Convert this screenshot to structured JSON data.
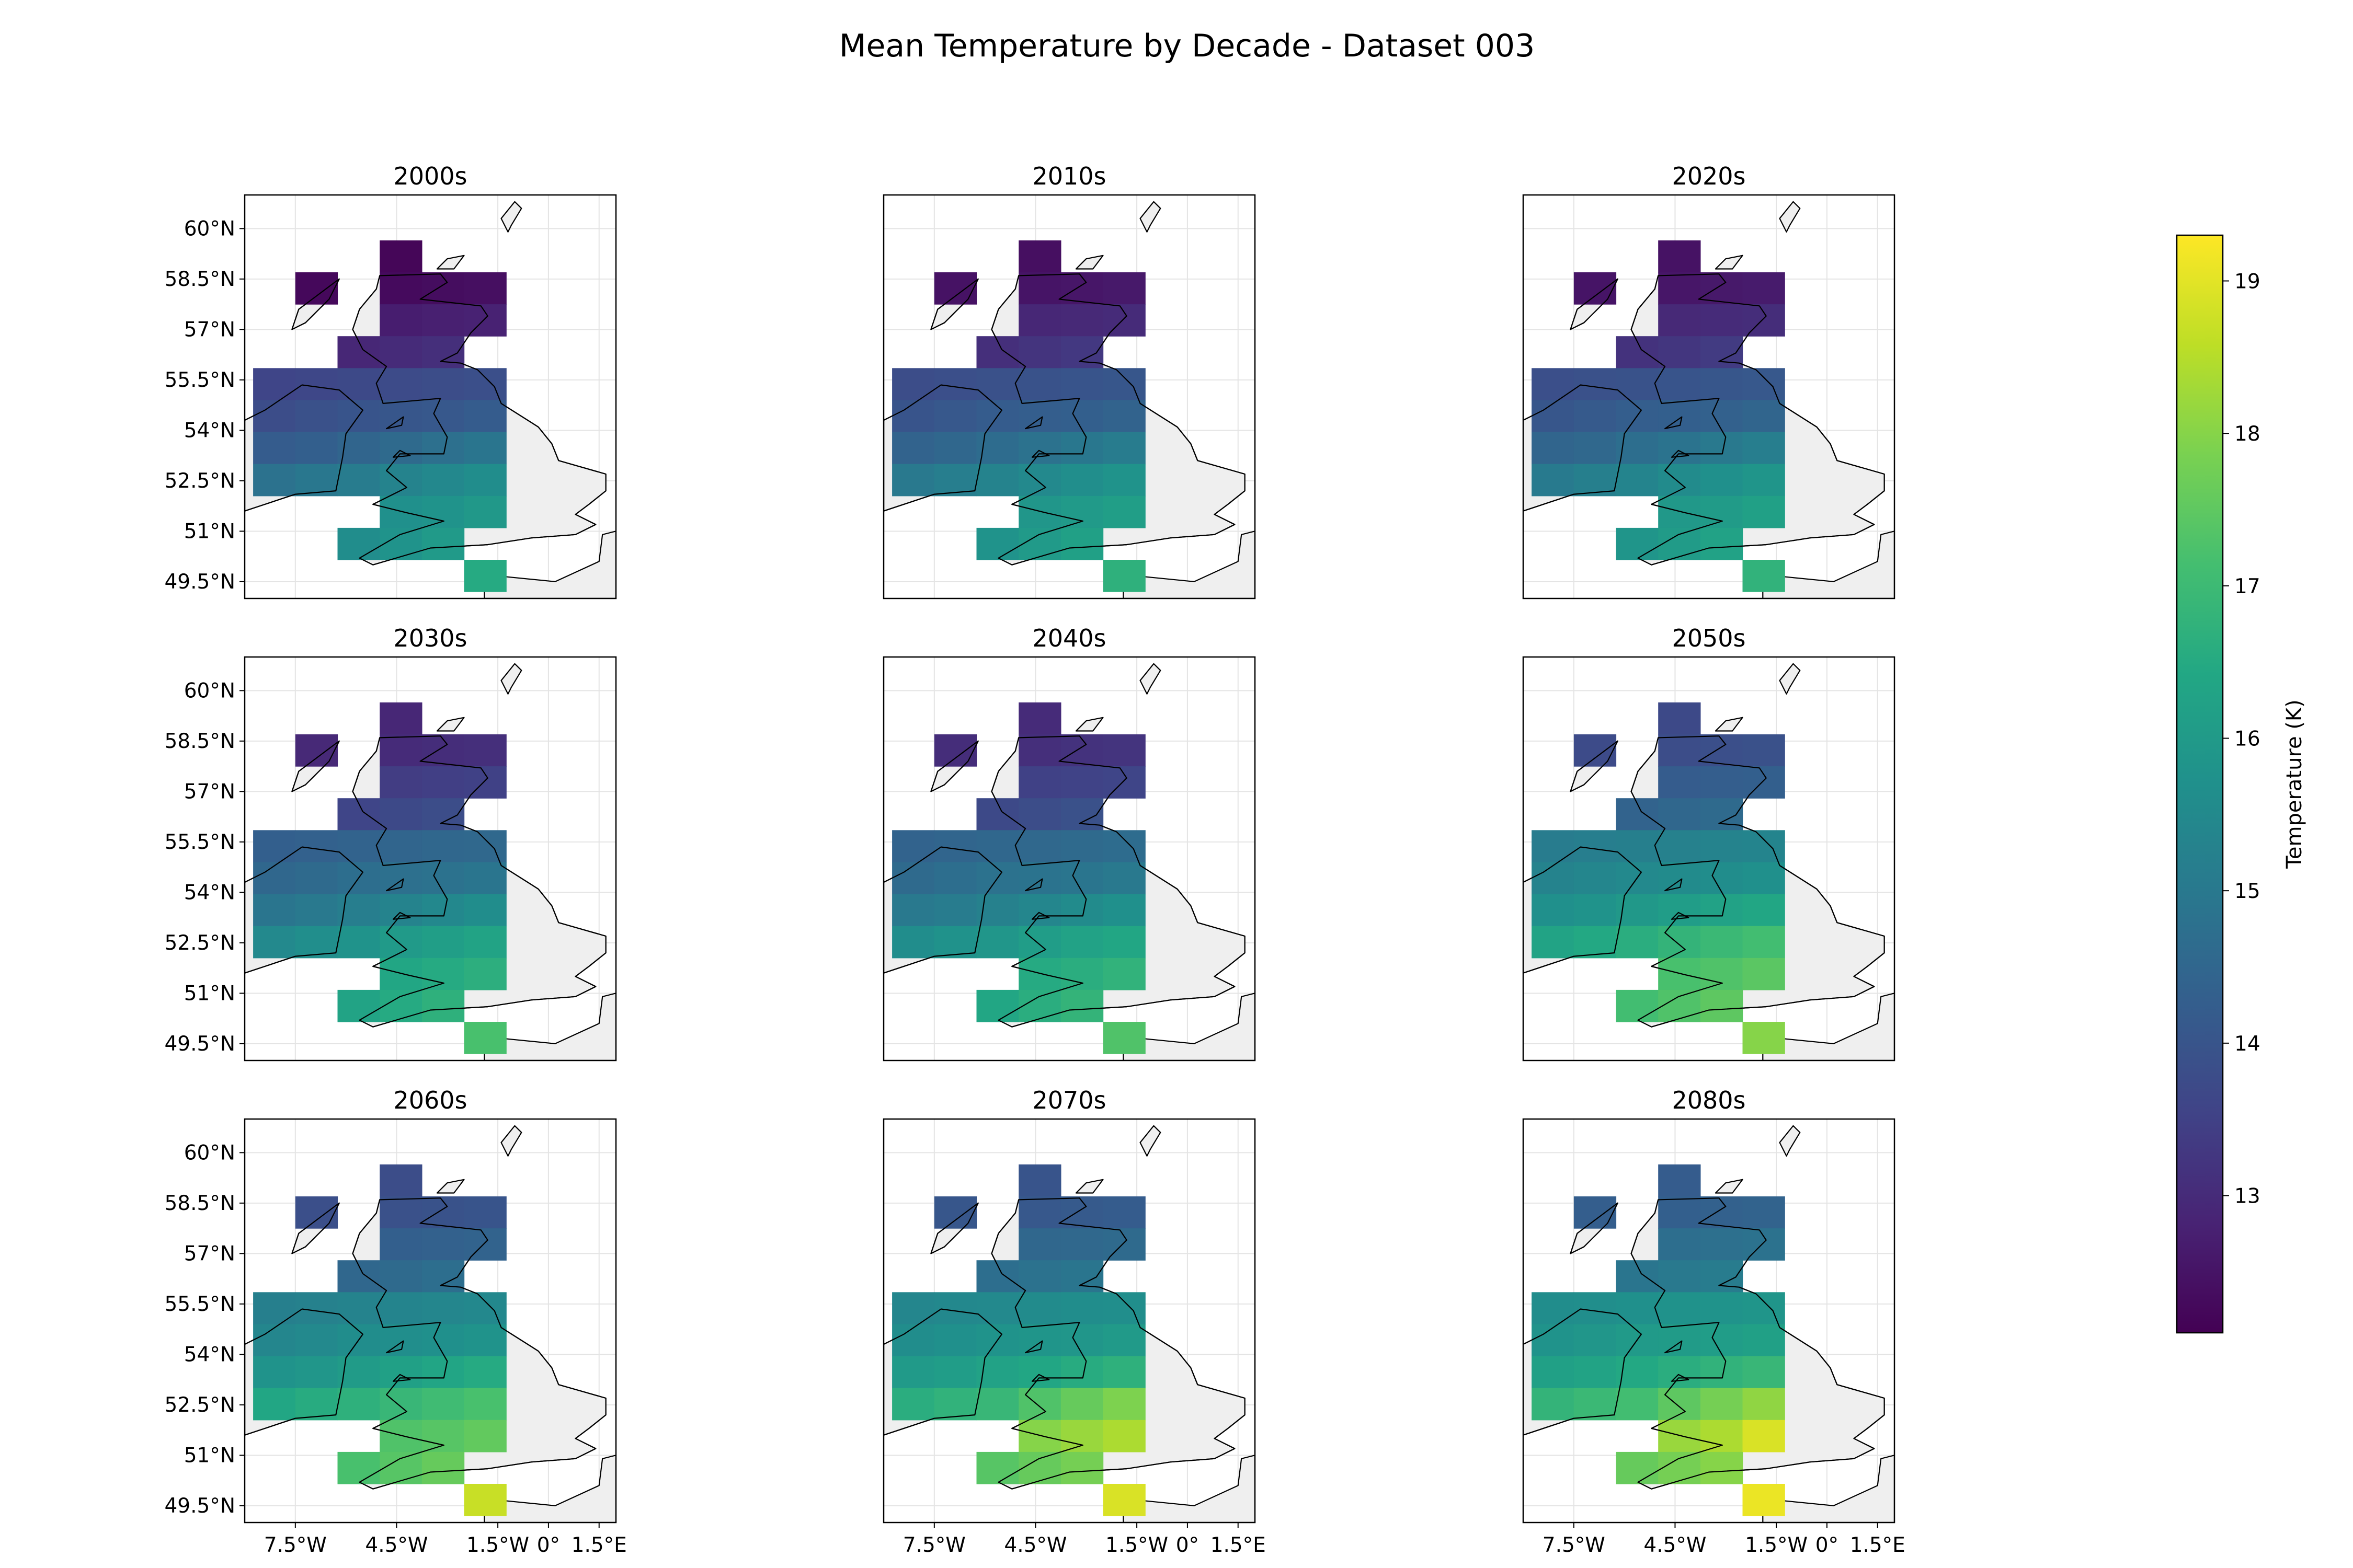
{
  "chart_data": {
    "type": "heatmap",
    "title": "Mean Temperature by Decade - Dataset 003",
    "colorbar": {
      "label": "Temperature (K)",
      "range": [
        12.1,
        19.3
      ],
      "ticks": [
        "13",
        "14",
        "15",
        "16",
        "17",
        "18",
        "19"
      ],
      "colormap": "viridis"
    },
    "map": {
      "lon_range": [
        -9.0,
        2.0
      ],
      "lat_range": [
        49.0,
        61.0
      ],
      "lon_ticks": [
        {
          "lon": -7.5,
          "label": "7.5°W"
        },
        {
          "lon": -4.5,
          "label": "4.5°W"
        },
        {
          "lon": -1.5,
          "label": "1.5°W"
        },
        {
          "lon": 0.0,
          "label": "0°"
        },
        {
          "lon": 1.5,
          "label": "1.5°E"
        }
      ],
      "lat_ticks": [
        {
          "lat": 60.0,
          "label": "60°N"
        },
        {
          "lat": 58.5,
          "label": "58.5°N"
        },
        {
          "lat": 57.0,
          "label": "57°N"
        },
        {
          "lat": 55.5,
          "label": "55.5°N"
        },
        {
          "lat": 54.0,
          "label": "54°N"
        },
        {
          "lat": 52.5,
          "label": "52.5°N"
        },
        {
          "lat": 51.0,
          "label": "51°N"
        },
        {
          "lat": 49.5,
          "label": "49.5°N"
        }
      ],
      "grid_cells": [
        {
          "lon": [
            -7.5,
            -6.25
          ],
          "lat": [
            57.75,
            58.7
          ]
        },
        {
          "lon": [
            -5.0,
            -3.75
          ],
          "lat": [
            58.7,
            59.65
          ]
        },
        {
          "lon": [
            -5.0,
            -3.75
          ],
          "lat": [
            57.75,
            58.7
          ]
        },
        {
          "lon": [
            -3.75,
            -2.5
          ],
          "lat": [
            57.75,
            58.7
          ]
        },
        {
          "lon": [
            -2.5,
            -1.25
          ],
          "lat": [
            57.75,
            58.7
          ]
        },
        {
          "lon": [
            -5.0,
            -3.75
          ],
          "lat": [
            56.8,
            57.75
          ]
        },
        {
          "lon": [
            -3.75,
            -2.5
          ],
          "lat": [
            56.8,
            57.75
          ]
        },
        {
          "lon": [
            -2.5,
            -1.25
          ],
          "lat": [
            56.8,
            57.75
          ]
        },
        {
          "lon": [
            -6.25,
            -5.0
          ],
          "lat": [
            55.85,
            56.8
          ]
        },
        {
          "lon": [
            -5.0,
            -3.75
          ],
          "lat": [
            55.85,
            56.8
          ]
        },
        {
          "lon": [
            -3.75,
            -2.5
          ],
          "lat": [
            55.85,
            56.8
          ]
        },
        {
          "lon": [
            -8.75,
            -7.5
          ],
          "lat": [
            54.9,
            55.85
          ]
        },
        {
          "lon": [
            -7.5,
            -6.25
          ],
          "lat": [
            54.9,
            55.85
          ]
        },
        {
          "lon": [
            -6.25,
            -5.0
          ],
          "lat": [
            54.9,
            55.85
          ]
        },
        {
          "lon": [
            -5.0,
            -3.75
          ],
          "lat": [
            54.9,
            55.85
          ]
        },
        {
          "lon": [
            -3.75,
            -2.5
          ],
          "lat": [
            54.9,
            55.85
          ]
        },
        {
          "lon": [
            -2.5,
            -1.25
          ],
          "lat": [
            54.9,
            55.85
          ]
        },
        {
          "lon": [
            -8.75,
            -7.5
          ],
          "lat": [
            53.95,
            54.9
          ]
        },
        {
          "lon": [
            -7.5,
            -6.25
          ],
          "lat": [
            53.95,
            54.9
          ]
        },
        {
          "lon": [
            -6.25,
            -5.0
          ],
          "lat": [
            53.95,
            54.9
          ]
        },
        {
          "lon": [
            -5.0,
            -3.75
          ],
          "lat": [
            53.95,
            54.9
          ]
        },
        {
          "lon": [
            -3.75,
            -2.5
          ],
          "lat": [
            53.95,
            54.9
          ]
        },
        {
          "lon": [
            -2.5,
            -1.25
          ],
          "lat": [
            53.95,
            54.9
          ]
        },
        {
          "lon": [
            -8.75,
            -7.5
          ],
          "lat": [
            53.0,
            53.95
          ]
        },
        {
          "lon": [
            -7.5,
            -6.25
          ],
          "lat": [
            53.0,
            53.95
          ]
        },
        {
          "lon": [
            -6.25,
            -5.0
          ],
          "lat": [
            53.0,
            53.95
          ]
        },
        {
          "lon": [
            -5.0,
            -3.75
          ],
          "lat": [
            53.0,
            53.95
          ]
        },
        {
          "lon": [
            -3.75,
            -2.5
          ],
          "lat": [
            53.0,
            53.95
          ]
        },
        {
          "lon": [
            -2.5,
            -1.25
          ],
          "lat": [
            53.0,
            53.95
          ]
        },
        {
          "lon": [
            -8.75,
            -7.5
          ],
          "lat": [
            52.05,
            53.0
          ]
        },
        {
          "lon": [
            -7.5,
            -6.25
          ],
          "lat": [
            52.05,
            53.0
          ]
        },
        {
          "lon": [
            -6.25,
            -5.0
          ],
          "lat": [
            52.05,
            53.0
          ]
        },
        {
          "lon": [
            -5.0,
            -3.75
          ],
          "lat": [
            52.05,
            53.0
          ]
        },
        {
          "lon": [
            -3.75,
            -2.5
          ],
          "lat": [
            52.05,
            53.0
          ]
        },
        {
          "lon": [
            -2.5,
            -1.25
          ],
          "lat": [
            52.05,
            53.0
          ]
        },
        {
          "lon": [
            -5.0,
            -3.75
          ],
          "lat": [
            51.1,
            52.05
          ]
        },
        {
          "lon": [
            -3.75,
            -2.5
          ],
          "lat": [
            51.1,
            52.05
          ]
        },
        {
          "lon": [
            -2.5,
            -1.25
          ],
          "lat": [
            51.1,
            52.05
          ]
        },
        {
          "lon": [
            -6.25,
            -5.0
          ],
          "lat": [
            50.15,
            51.1
          ]
        },
        {
          "lon": [
            -5.0,
            -3.75
          ],
          "lat": [
            50.15,
            51.1
          ]
        },
        {
          "lon": [
            -3.75,
            -2.5
          ],
          "lat": [
            50.15,
            51.1
          ]
        },
        {
          "lon": [
            -2.5,
            -1.25
          ],
          "lat": [
            49.2,
            50.15
          ]
        }
      ]
    },
    "panels": [
      {
        "title": "2000s",
        "values": [
          12.25,
          12.2,
          12.3,
          12.35,
          12.4,
          12.7,
          12.75,
          12.8,
          12.9,
          13.0,
          13.1,
          13.6,
          13.65,
          13.7,
          13.75,
          13.8,
          13.85,
          13.8,
          13.9,
          14.0,
          14.05,
          14.1,
          14.2,
          14.2,
          14.3,
          14.45,
          14.6,
          14.75,
          14.9,
          14.8,
          14.95,
          15.1,
          15.3,
          15.45,
          15.6,
          15.7,
          15.8,
          15.95,
          15.6,
          15.8,
          16.0,
          16.5
        ]
      },
      {
        "title": "2010s",
        "values": [
          12.45,
          12.4,
          12.5,
          12.55,
          12.6,
          12.9,
          12.95,
          13.0,
          13.1,
          13.2,
          13.3,
          13.8,
          13.85,
          13.9,
          13.95,
          14.0,
          14.05,
          14.0,
          14.1,
          14.2,
          14.25,
          14.3,
          14.4,
          14.4,
          14.5,
          14.65,
          14.8,
          14.95,
          15.1,
          15.0,
          15.15,
          15.3,
          15.5,
          15.65,
          15.8,
          15.9,
          16.0,
          16.15,
          15.8,
          16.0,
          16.2,
          16.7
        ]
      },
      {
        "title": "2020s",
        "values": [
          12.5,
          12.45,
          12.55,
          12.6,
          12.65,
          12.95,
          13.0,
          13.05,
          13.15,
          13.25,
          13.35,
          13.85,
          13.9,
          13.95,
          14.0,
          14.05,
          14.1,
          14.05,
          14.15,
          14.25,
          14.3,
          14.35,
          14.45,
          14.45,
          14.55,
          14.7,
          14.85,
          15.0,
          15.15,
          15.05,
          15.2,
          15.35,
          15.55,
          15.7,
          15.85,
          15.95,
          16.05,
          16.2,
          15.85,
          16.05,
          16.25,
          16.75
        ]
      },
      {
        "title": "2030s",
        "values": [
          12.95,
          12.9,
          13.0,
          13.05,
          13.1,
          13.4,
          13.45,
          13.5,
          13.6,
          13.7,
          13.8,
          14.3,
          14.35,
          14.4,
          14.45,
          14.5,
          14.55,
          14.5,
          14.6,
          14.7,
          14.75,
          14.8,
          14.9,
          14.9,
          15.0,
          15.15,
          15.3,
          15.45,
          15.6,
          15.5,
          15.65,
          15.8,
          16.0,
          16.15,
          16.3,
          16.4,
          16.5,
          16.65,
          16.3,
          16.5,
          16.7,
          17.2
        ]
      },
      {
        "title": "2040s",
        "values": [
          13.05,
          13.0,
          13.1,
          13.15,
          13.2,
          13.5,
          13.55,
          13.6,
          13.7,
          13.8,
          13.9,
          14.4,
          14.45,
          14.5,
          14.55,
          14.6,
          14.65,
          14.6,
          14.7,
          14.8,
          14.85,
          14.9,
          15.0,
          15.0,
          15.1,
          15.25,
          15.4,
          15.55,
          15.7,
          15.6,
          15.75,
          15.9,
          16.1,
          16.25,
          16.4,
          16.5,
          16.6,
          16.75,
          16.4,
          16.6,
          16.8,
          17.3
        ]
      },
      {
        "title": "2050s",
        "values": [
          13.75,
          13.7,
          13.8,
          13.85,
          13.9,
          14.2,
          14.25,
          14.3,
          14.4,
          14.5,
          14.6,
          15.1,
          15.15,
          15.2,
          15.25,
          15.3,
          15.35,
          15.3,
          15.4,
          15.5,
          15.55,
          15.6,
          15.7,
          15.7,
          15.8,
          15.95,
          16.1,
          16.25,
          16.4,
          16.3,
          16.45,
          16.6,
          16.8,
          16.95,
          17.1,
          17.2,
          17.3,
          17.45,
          17.1,
          17.3,
          17.5,
          18.0
        ]
      },
      {
        "title": "2060s",
        "values": [
          13.85,
          13.8,
          13.9,
          13.95,
          14.0,
          14.3,
          14.35,
          14.4,
          14.5,
          14.6,
          14.7,
          15.2,
          15.25,
          15.3,
          15.35,
          15.4,
          15.45,
          15.4,
          15.5,
          15.6,
          15.65,
          15.7,
          15.8,
          15.8,
          15.9,
          16.05,
          16.2,
          16.35,
          16.5,
          16.4,
          16.55,
          16.7,
          16.9,
          17.05,
          17.2,
          17.3,
          17.4,
          17.55,
          17.2,
          17.4,
          17.6,
          18.7
        ]
      },
      {
        "title": "2070s",
        "values": [
          14.05,
          14.0,
          14.1,
          14.15,
          14.2,
          14.5,
          14.55,
          14.6,
          14.7,
          14.8,
          14.9,
          15.4,
          15.45,
          15.5,
          15.55,
          15.6,
          15.65,
          15.6,
          15.7,
          15.8,
          15.85,
          15.9,
          16.0,
          16.0,
          16.1,
          16.25,
          16.4,
          16.55,
          16.7,
          16.6,
          16.75,
          16.9,
          17.3,
          17.6,
          17.9,
          18.0,
          18.2,
          18.4,
          17.4,
          17.6,
          17.8,
          18.9
        ]
      },
      {
        "title": "2080s",
        "values": [
          14.25,
          14.2,
          14.3,
          14.35,
          14.4,
          14.7,
          14.75,
          14.8,
          14.9,
          15.0,
          15.1,
          15.6,
          15.65,
          15.7,
          15.75,
          15.8,
          15.85,
          15.8,
          15.9,
          16.0,
          16.05,
          16.1,
          16.2,
          16.2,
          16.3,
          16.45,
          16.6,
          16.75,
          16.9,
          16.8,
          16.95,
          17.1,
          17.5,
          17.8,
          18.1,
          18.2,
          18.4,
          18.9,
          17.6,
          17.8,
          18.0,
          19.1
        ]
      }
    ]
  }
}
